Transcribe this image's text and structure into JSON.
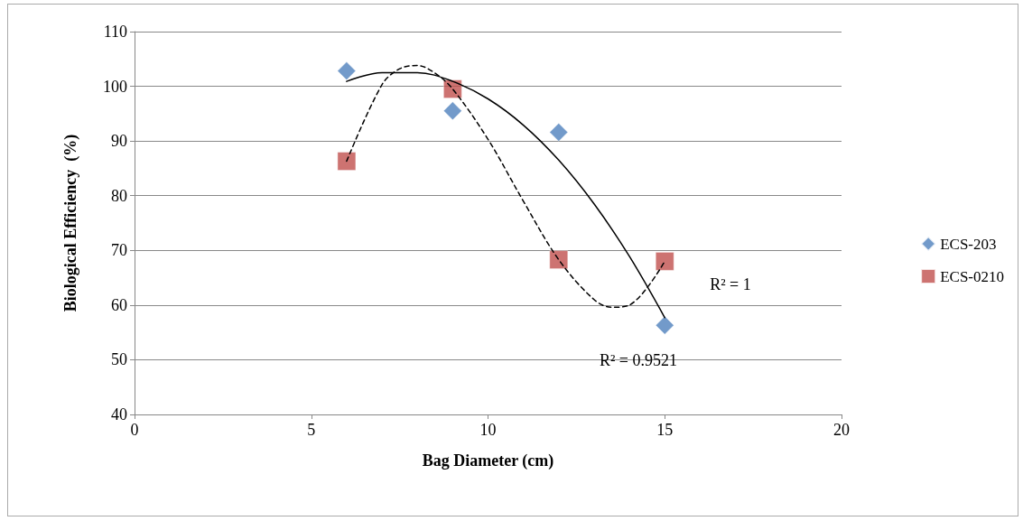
{
  "chart_data": {
    "type": "scatter",
    "xlabel": "Bag Diameter (cm)",
    "ylabel": "Biological Efficiency  (%)",
    "xlim": [
      0,
      20
    ],
    "xticks": [
      0,
      5,
      10,
      15,
      20
    ],
    "ylim": [
      40,
      110
    ],
    "yticks": [
      40,
      50,
      60,
      70,
      80,
      90,
      100,
      110
    ],
    "grid": "y",
    "legend": "right",
    "series": [
      {
        "name": "ECS-203",
        "color": "#4f81bd",
        "marker": "diamond",
        "x": [
          6,
          9,
          12,
          15
        ],
        "values": [
          102.8,
          95.5,
          91.6,
          56.3
        ]
      },
      {
        "name": "ECS-0210",
        "color": "#c0504d",
        "marker": "square",
        "x": [
          6,
          9,
          12,
          15
        ],
        "values": [
          86.3,
          99.5,
          68.3,
          68.0
        ]
      },
      {
        "type": "line",
        "color": "#000000",
        "marker": "none",
        "line_style": "solid",
        "x": [
          6,
          7,
          8,
          9,
          10,
          11,
          12,
          13,
          14,
          15
        ],
        "values": [
          100.9,
          102.5,
          102.5,
          100.9,
          97.7,
          92.9,
          86.5,
          78.5,
          68.9,
          57.7
        ]
      },
      {
        "type": "line",
        "color": "#000000",
        "marker": "none",
        "line_style": "dashed",
        "x": [
          6,
          7,
          7.5,
          8,
          8.5,
          9,
          10,
          11,
          12,
          13,
          13.5,
          14,
          15
        ],
        "values": [
          86.3,
          100.3,
          103.2,
          103.8,
          102.4,
          99.5,
          90.3,
          79.0,
          68.3,
          61.0,
          59.6,
          60.0,
          68.0
        ]
      }
    ],
    "annotations": [
      "R² = 1",
      "R² = 0.9521"
    ]
  }
}
